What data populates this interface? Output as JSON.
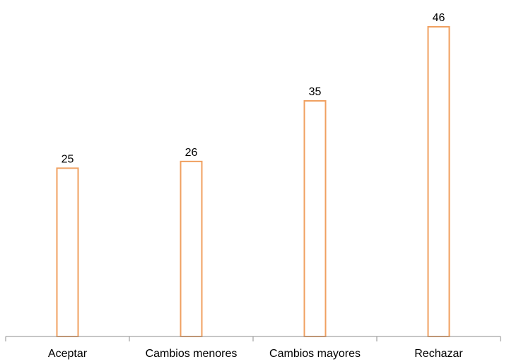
{
  "chart_data": {
    "type": "bar",
    "categories": [
      "Aceptar",
      "Cambios menores",
      "Cambios mayores",
      "Rechazar"
    ],
    "values": [
      25,
      26,
      35,
      46
    ],
    "title": "",
    "xlabel": "",
    "ylabel": "",
    "ylim": [
      0,
      46
    ],
    "grid": false,
    "legend": "none",
    "colors": {
      "bar_stroke": "#f0a060",
      "bar_fill": "#ffffff",
      "axis": "#8c8c8c",
      "text": "#000000"
    }
  }
}
